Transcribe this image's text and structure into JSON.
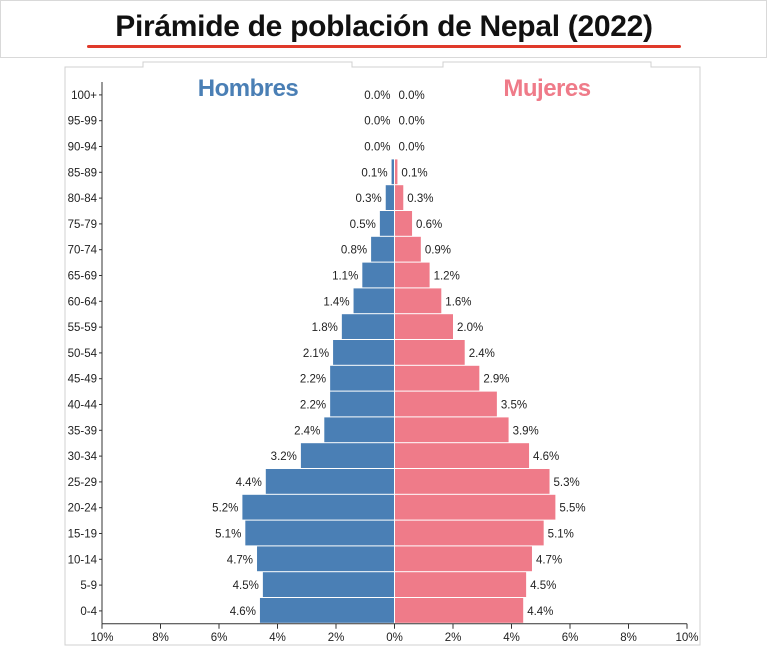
{
  "page": {
    "title": "Pirámide de población de Nepal (2022)"
  },
  "colors": {
    "male": "#4a7fb5",
    "female": "#ef7b89",
    "title_underline": "#e03a2a"
  },
  "chart_data": {
    "type": "bar",
    "orientation": "horizontal-diverging",
    "title": "Pirámide de población de Nepal (2022)",
    "categories": [
      "100+",
      "95-99",
      "90-94",
      "85-89",
      "80-84",
      "75-79",
      "70-74",
      "65-69",
      "60-64",
      "55-59",
      "50-54",
      "45-49",
      "40-44",
      "35-39",
      "30-34",
      "25-29",
      "20-24",
      "15-19",
      "10-14",
      "5-9",
      "0-4"
    ],
    "series": [
      {
        "name": "Hombres",
        "side": "left",
        "values": [
          0.0,
          0.0,
          0.0,
          0.1,
          0.3,
          0.5,
          0.8,
          1.1,
          1.4,
          1.8,
          2.1,
          2.2,
          2.2,
          2.4,
          3.2,
          4.4,
          5.2,
          5.1,
          4.7,
          4.5,
          4.6
        ],
        "labels": [
          "0.0%",
          "0.0%",
          "0.0%",
          "0.1%",
          "0.3%",
          "0.5%",
          "0.8%",
          "1.1%",
          "1.4%",
          "1.8%",
          "2.1%",
          "2.2%",
          "2.2%",
          "2.4%",
          "3.2%",
          "4.4%",
          "5.2%",
          "5.1%",
          "4.7%",
          "4.5%",
          "4.6%"
        ]
      },
      {
        "name": "Mujeres",
        "side": "right",
        "values": [
          0.0,
          0.0,
          0.0,
          0.1,
          0.3,
          0.6,
          0.9,
          1.2,
          1.6,
          2.0,
          2.4,
          2.9,
          3.5,
          3.9,
          4.6,
          5.3,
          5.5,
          5.1,
          4.7,
          4.5,
          4.4
        ],
        "labels": [
          "0.0%",
          "0.0%",
          "0.0%",
          "0.1%",
          "0.3%",
          "0.6%",
          "0.9%",
          "1.2%",
          "1.6%",
          "2.0%",
          "2.4%",
          "2.9%",
          "3.5%",
          "3.9%",
          "4.6%",
          "5.3%",
          "5.5%",
          "5.1%",
          "4.7%",
          "4.5%",
          "4.4%"
        ]
      }
    ],
    "xlim": [
      -10,
      10
    ],
    "xticks": [
      -10,
      -8,
      -6,
      -4,
      -2,
      0,
      2,
      4,
      6,
      8,
      10
    ],
    "xtick_labels": [
      "10%",
      "8%",
      "6%",
      "4%",
      "2%",
      "0%",
      "2%",
      "4%",
      "6%",
      "8%",
      "10%"
    ],
    "legend": "top, labels above each side",
    "grid": false
  }
}
